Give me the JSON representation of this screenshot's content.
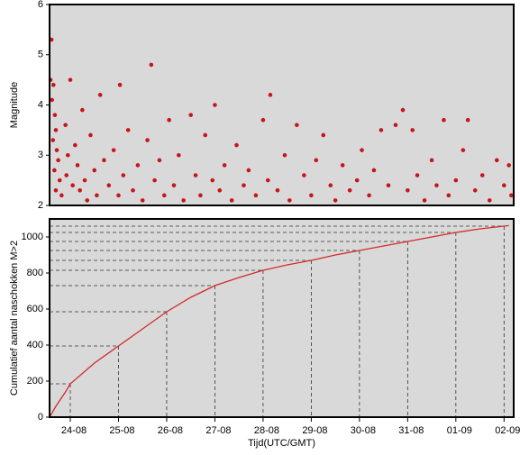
{
  "chart_data": [
    {
      "type": "scatter",
      "y_label": "Magnitude",
      "color": "#c4161c",
      "xlim": [
        -0.43,
        9.2
      ],
      "ylim": [
        2,
        6
      ],
      "yticks": [
        2,
        3,
        4,
        5,
        6
      ],
      "x": [
        -0.39,
        -0.41,
        -0.35,
        -0.38,
        -0.32,
        -0.3,
        -0.36,
        -0.28,
        -0.25,
        -0.33,
        -0.22,
        -0.3,
        -0.18,
        -0.1,
        -0.05,
        -0.08,
        0.0,
        0.05,
        0.1,
        0.15,
        0.2,
        0.25,
        0.3,
        0.35,
        0.42,
        0.5,
        0.55,
        0.62,
        0.7,
        0.8,
        0.9,
        1.0,
        1.03,
        1.1,
        1.2,
        1.3,
        1.4,
        1.5,
        1.6,
        1.68,
        1.75,
        1.85,
        1.95,
        2.05,
        2.15,
        2.25,
        2.35,
        2.5,
        2.6,
        2.7,
        2.8,
        2.95,
        3.0,
        3.1,
        3.2,
        3.35,
        3.45,
        3.6,
        3.7,
        3.85,
        4.0,
        4.1,
        4.15,
        4.3,
        4.45,
        4.55,
        4.7,
        4.85,
        5.0,
        5.1,
        5.25,
        5.4,
        5.5,
        5.65,
        5.8,
        5.95,
        6.05,
        6.2,
        6.3,
        6.45,
        6.6,
        6.75,
        6.9,
        7.0,
        7.1,
        7.2,
        7.35,
        7.5,
        7.6,
        7.75,
        7.85,
        8.0,
        8.15,
        8.25,
        8.4,
        8.55,
        8.7,
        8.85,
        9.0,
        9.1,
        9.15
      ],
      "values": [
        5.3,
        4.5,
        4.4,
        4.1,
        3.8,
        3.5,
        3.3,
        3.1,
        2.9,
        2.7,
        2.5,
        2.3,
        2.2,
        3.6,
        3.0,
        2.6,
        4.5,
        2.4,
        3.2,
        2.8,
        2.3,
        3.9,
        2.5,
        2.1,
        3.4,
        2.7,
        2.2,
        4.2,
        2.9,
        2.4,
        3.1,
        2.2,
        4.4,
        2.6,
        3.5,
        2.3,
        2.8,
        2.1,
        3.3,
        4.8,
        2.5,
        2.9,
        2.2,
        3.7,
        2.4,
        3.0,
        2.1,
        3.8,
        2.6,
        2.2,
        3.4,
        2.5,
        4.0,
        2.3,
        2.8,
        2.1,
        3.2,
        2.4,
        2.7,
        2.2,
        3.7,
        2.5,
        4.2,
        2.3,
        3.0,
        2.1,
        3.6,
        2.6,
        2.2,
        2.9,
        3.4,
        2.4,
        2.1,
        2.8,
        2.3,
        2.5,
        3.1,
        2.2,
        2.7,
        3.5,
        2.4,
        3.6,
        3.9,
        2.3,
        3.5,
        2.6,
        2.1,
        2.9,
        2.4,
        3.7,
        2.2,
        2.5,
        3.1,
        3.7,
        2.3,
        2.6,
        2.1,
        2.9,
        2.4,
        2.8,
        2.2
      ]
    },
    {
      "type": "line",
      "y_label": "Cumulatief aantal naschokken M>2",
      "x_label": "Tijd(UTC/GMT)",
      "color": "#d42a2a",
      "xlim": [
        -0.43,
        9.2
      ],
      "ylim": [
        0,
        1100
      ],
      "yticks": [
        0,
        200,
        400,
        600,
        800,
        1000
      ],
      "xticks": [
        {
          "value": 0,
          "label": "24-08"
        },
        {
          "value": 1,
          "label": "25-08"
        },
        {
          "value": 2,
          "label": "26-08"
        },
        {
          "value": 3,
          "label": "27-08"
        },
        {
          "value": 4,
          "label": "28-08"
        },
        {
          "value": 5,
          "label": "29-08"
        },
        {
          "value": 6,
          "label": "30-08"
        },
        {
          "value": 7,
          "label": "31-08"
        },
        {
          "value": 8,
          "label": "01-09"
        },
        {
          "value": 9,
          "label": "02-09"
        }
      ],
      "x": [
        -0.43,
        -0.3,
        -0.1,
        0,
        0.5,
        1,
        1.5,
        2,
        2.5,
        3,
        3.5,
        4,
        4.5,
        5,
        5.5,
        6,
        6.5,
        7,
        7.5,
        8,
        8.5,
        9,
        9.1
      ],
      "values": [
        0,
        60,
        140,
        185,
        300,
        395,
        490,
        585,
        665,
        730,
        775,
        815,
        845,
        870,
        900,
        925,
        950,
        975,
        1000,
        1025,
        1045,
        1060,
        1063
      ]
    }
  ]
}
